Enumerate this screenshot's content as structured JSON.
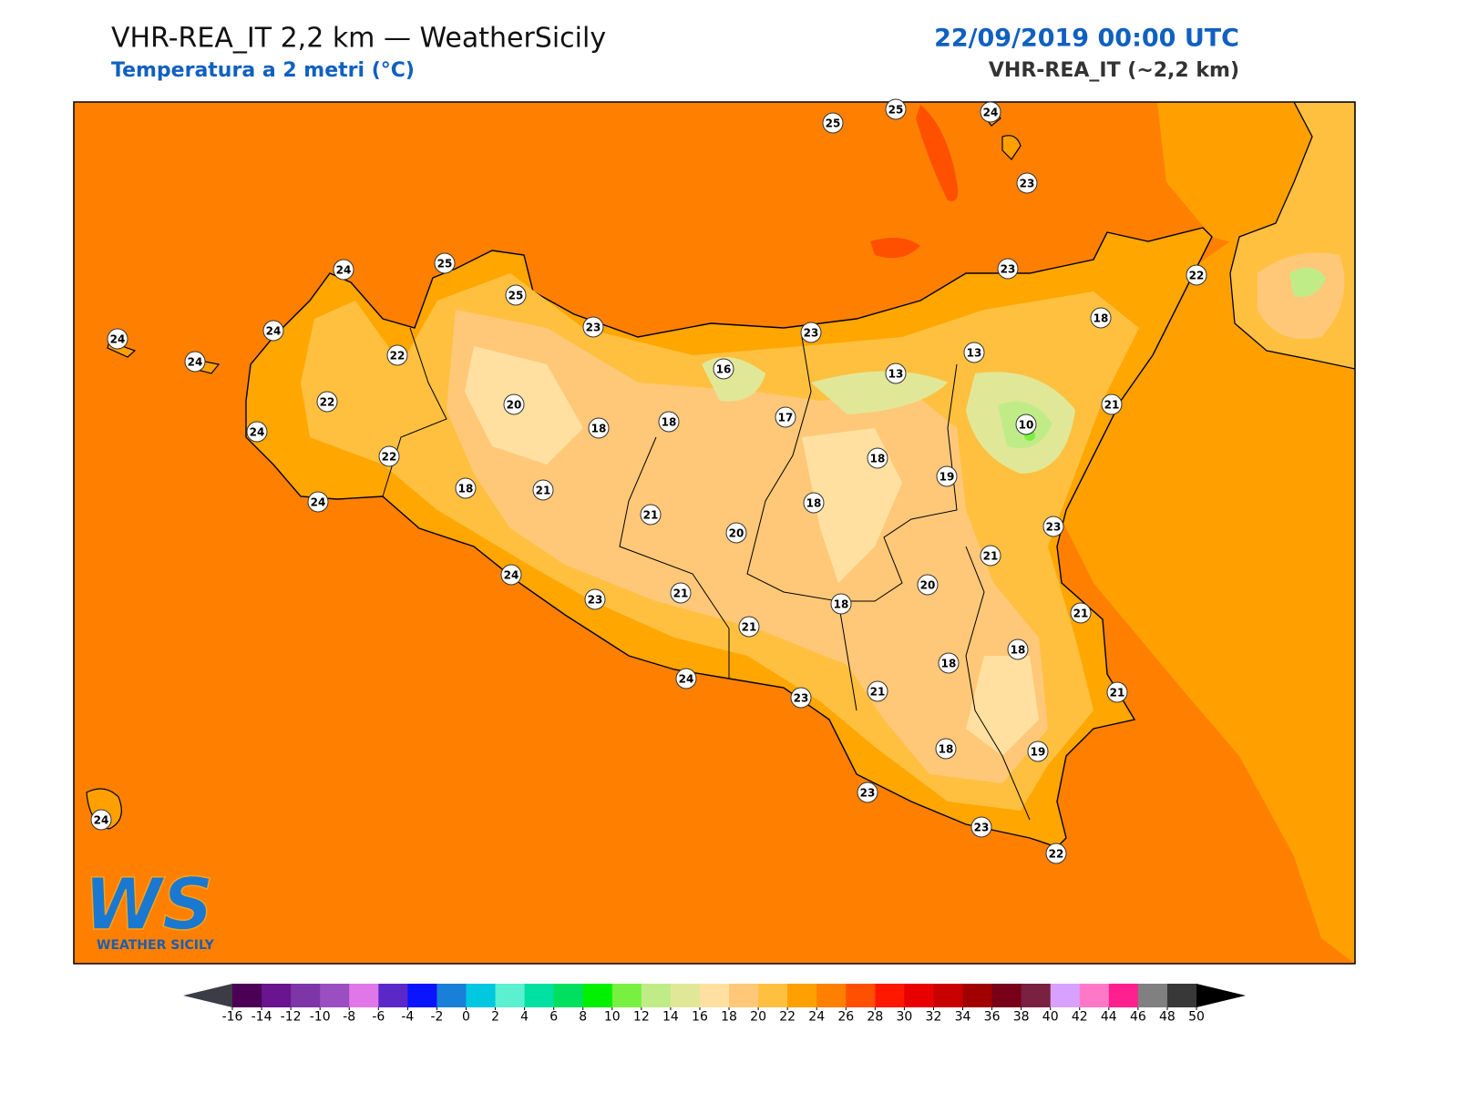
{
  "header": {
    "title": "VHR-REA_IT 2,2 km — WeatherSicily",
    "subtitle": "Temperatura a 2 metri (°C)",
    "datetime": "22/09/2019 00:00 UTC",
    "model": "VHR-REA_IT (~2,2 km)"
  },
  "stations": [
    25,
    25,
    24,
    23,
    24,
    25,
    25,
    23,
    23,
    23,
    22,
    18,
    24,
    24,
    24,
    22,
    13,
    13,
    16,
    22,
    20,
    18,
    18,
    17,
    21,
    10,
    24,
    22,
    18,
    19,
    18,
    21,
    24,
    21,
    18,
    20,
    23,
    21,
    24,
    20,
    23,
    21,
    18,
    21,
    21,
    18,
    18,
    24,
    23,
    21,
    21,
    18,
    19,
    23,
    23,
    22,
    24
  ],
  "colorbar": {
    "ticks": [
      -16,
      -14,
      -12,
      -10,
      -8,
      -6,
      -4,
      -2,
      0,
      2,
      4,
      6,
      8,
      10,
      12,
      14,
      16,
      18,
      20,
      22,
      24,
      26,
      28,
      30,
      32,
      34,
      36,
      38,
      40,
      42,
      44,
      46,
      48,
      50
    ],
    "colors": [
      "#4b0055",
      "#6a1490",
      "#7d35a8",
      "#9b4ec0",
      "#e077e8",
      "#5a28c8",
      "#0a14ff",
      "#1880d8",
      "#00c8e0",
      "#5af0d0",
      "#00e0a0",
      "#00e060",
      "#00f000",
      "#78f040",
      "#c0ec88",
      "#e0e898",
      "#ffe0a0",
      "#ffc878",
      "#ffc040",
      "#ffa000",
      "#ff8000",
      "#ff5000",
      "#ff1800",
      "#e80000",
      "#c80000",
      "#a00000",
      "#780018",
      "#7a2040",
      "#d8a0ff",
      "#ff78c8",
      "#ff2090",
      "#808080",
      "#383838"
    ],
    "under_color": "#3c3c46",
    "over_color": "#000000"
  },
  "logo": {
    "initials": "WS",
    "name": "WEATHER SICILY"
  }
}
